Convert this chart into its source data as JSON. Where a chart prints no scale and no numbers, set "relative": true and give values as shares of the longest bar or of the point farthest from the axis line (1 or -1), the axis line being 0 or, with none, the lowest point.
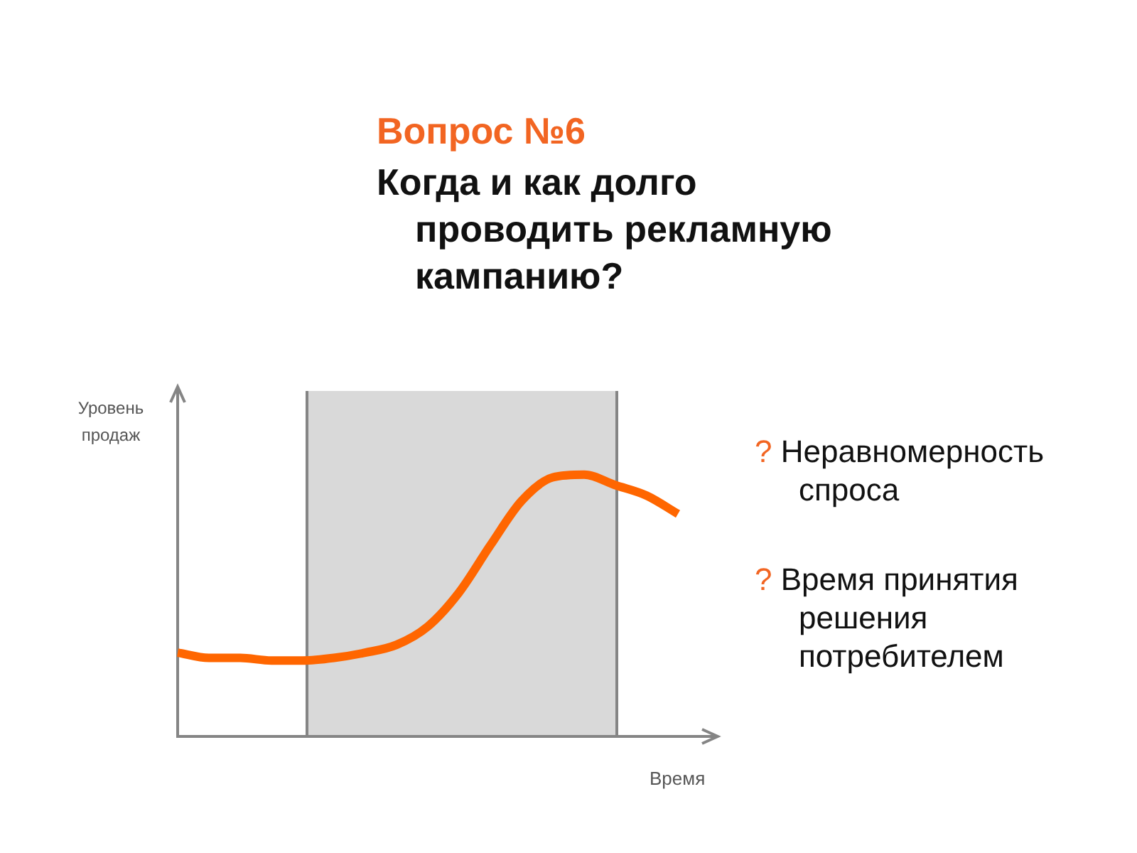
{
  "chart_data": {
    "type": "line",
    "title": "Вопрос №6",
    "subtitle": "Когда и как долго проводить рекламную кампанию?",
    "xlabel": "Время",
    "ylabel": "Уровень продаж",
    "categories": [
      null,
      null,
      null,
      null,
      null,
      null,
      null,
      null,
      null,
      null,
      null,
      null,
      null,
      null,
      null,
      null,
      null
    ],
    "series": [
      {
        "color": "#ff6600",
        "values": [
          0.32,
          0.3,
          0.3,
          0.29,
          0.29,
          0.3,
          0.32,
          0.35,
          0.42,
          0.55,
          0.73,
          0.9,
          0.99,
          1,
          0.96,
          0.92,
          0.85
        ]
      }
    ],
    "relative": true,
    "marker": "none",
    "tick_labels": false,
    "annotations": [
      "? Неравномерность спроса",
      "? Время принятия решения потребителем"
    ]
  }
}
